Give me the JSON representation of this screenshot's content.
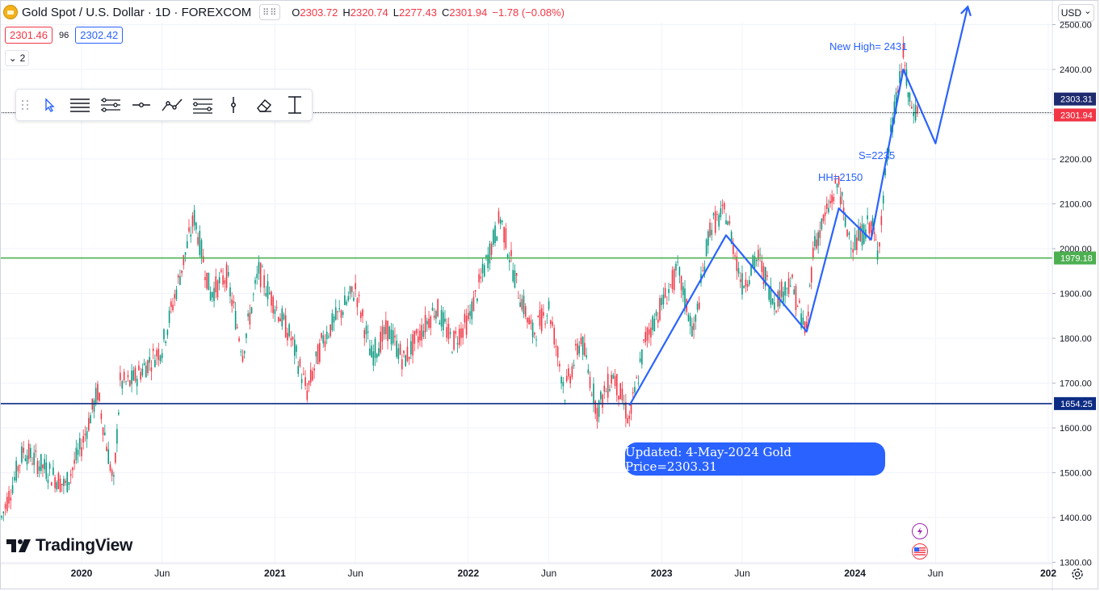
{
  "header": {
    "symbol": "Gold Spot / U.S. Dollar · 1D · FOREXCOM",
    "ohlc": {
      "o_label": "O",
      "o_value": "2303.72",
      "h_label": "H",
      "h_value": "2320.74",
      "l_label": "L",
      "l_value": "2277.43",
      "c_label": "C",
      "c_value": "2301.94",
      "change": "−1.78 (−0.08%)"
    },
    "bid": "2301.46",
    "spread": "96",
    "ask": "2302.42",
    "collapse_count": "2",
    "currency": "USD"
  },
  "toolbar": {
    "tools": [
      "drag-handle",
      "cursor-icon",
      "horizontal-lines-icon",
      "parallel-channel-icon",
      "horizontal-ray-icon",
      "trend-line-icon",
      "fib-levels-icon",
      "vertical-line-icon",
      "eraser-icon",
      "measure-icon"
    ]
  },
  "branding": {
    "logo_text": "TradingView"
  },
  "annotations": {
    "new_high": "New High= 2431",
    "hh": "HH=2150",
    "support": "S=2235",
    "updated": "Updated: 4-May-2024 Gold Price=2303.31"
  },
  "chart_data": {
    "type": "candlestick",
    "title": "Gold Spot / U.S. Dollar",
    "interval": "1D",
    "ylim": [
      1300,
      2550
    ],
    "y_ticks": [
      1300,
      1400,
      1500,
      1600,
      1700,
      1800,
      1900,
      2000,
      2100,
      2200,
      2300,
      2400,
      2500
    ],
    "y_tick_labels": [
      "1300.00",
      "1400.00",
      "1500.00",
      "1600.00",
      "1700.00",
      "1800.00",
      "1900.00",
      "2000.00",
      "2100.00",
      "2200.00",
      "2300.00",
      "2400.00",
      "2500.00"
    ],
    "x_tick_labels": [
      {
        "date": "2020-01",
        "label": "2020",
        "bold": true
      },
      {
        "date": "2020-06",
        "label": "Jun",
        "bold": false
      },
      {
        "date": "2021-01",
        "label": "2021",
        "bold": true
      },
      {
        "date": "2021-06",
        "label": "Jun",
        "bold": false
      },
      {
        "date": "2022-01",
        "label": "2022",
        "bold": true
      },
      {
        "date": "2022-06",
        "label": "Jun",
        "bold": false
      },
      {
        "date": "2023-01",
        "label": "2023",
        "bold": true
      },
      {
        "date": "2023-06",
        "label": "Jun",
        "bold": false
      },
      {
        "date": "2024-01",
        "label": "2024",
        "bold": true
      },
      {
        "date": "2024-06",
        "label": "Jun",
        "bold": false
      },
      {
        "date": "2025-01",
        "label": "202",
        "bold": true
      }
    ],
    "price_path": [
      {
        "date": "2019-09",
        "value": 1400
      },
      {
        "date": "2019-09",
        "value": 1550
      },
      {
        "date": "2019-12",
        "value": 1470
      },
      {
        "date": "2020-01",
        "value": 1560
      },
      {
        "date": "2020-02",
        "value": 1680
      },
      {
        "date": "2020-03",
        "value": 1470
      },
      {
        "date": "2020-03",
        "value": 1700
      },
      {
        "date": "2020-04",
        "value": 1700
      },
      {
        "date": "2020-06",
        "value": 1780
      },
      {
        "date": "2020-08",
        "value": 2070
      },
      {
        "date": "2020-09",
        "value": 1900
      },
      {
        "date": "2020-10",
        "value": 1940
      },
      {
        "date": "2020-11",
        "value": 1770
      },
      {
        "date": "2020-12",
        "value": 1950
      },
      {
        "date": "2021-02",
        "value": 1800
      },
      {
        "date": "2021-03",
        "value": 1680
      },
      {
        "date": "2021-04",
        "value": 1800
      },
      {
        "date": "2021-06",
        "value": 1910
      },
      {
        "date": "2021-07",
        "value": 1760
      },
      {
        "date": "2021-08",
        "value": 1820
      },
      {
        "date": "2021-09",
        "value": 1750
      },
      {
        "date": "2021-11",
        "value": 1870
      },
      {
        "date": "2021-12",
        "value": 1790
      },
      {
        "date": "2022-01",
        "value": 1840
      },
      {
        "date": "2022-03",
        "value": 2070
      },
      {
        "date": "2022-04",
        "value": 1920
      },
      {
        "date": "2022-05",
        "value": 1810
      },
      {
        "date": "2022-06",
        "value": 1870
      },
      {
        "date": "2022-07",
        "value": 1680
      },
      {
        "date": "2022-08",
        "value": 1800
      },
      {
        "date": "2022-09",
        "value": 1640
      },
      {
        "date": "2022-10",
        "value": 1720
      },
      {
        "date": "2022-11",
        "value": 1616
      },
      {
        "date": "2022-12",
        "value": 1800
      },
      {
        "date": "2023-02",
        "value": 1950
      },
      {
        "date": "2023-03",
        "value": 1810
      },
      {
        "date": "2023-04",
        "value": 2050
      },
      {
        "date": "2023-05",
        "value": 2080
      },
      {
        "date": "2023-06",
        "value": 1920
      },
      {
        "date": "2023-07",
        "value": 1980
      },
      {
        "date": "2023-08",
        "value": 1880
      },
      {
        "date": "2023-09",
        "value": 1930
      },
      {
        "date": "2023-10",
        "value": 1810
      },
      {
        "date": "2023-10",
        "value": 2000
      },
      {
        "date": "2023-12",
        "value": 2150
      },
      {
        "date": "2023-12",
        "value": 2050
      },
      {
        "date": "2024-01",
        "value": 2010
      },
      {
        "date": "2024-02",
        "value": 2060
      },
      {
        "date": "2024-02",
        "value": 1990
      },
      {
        "date": "2024-03",
        "value": 2200
      },
      {
        "date": "2024-04",
        "value": 2431
      },
      {
        "date": "2024-04",
        "value": 2320
      },
      {
        "date": "2024-05",
        "value": 2302
      }
    ],
    "horizontal_levels": [
      {
        "value": 2303.31,
        "label": "2303.31",
        "color": "#131722",
        "style": "dashed",
        "badge_color": "#1e2b6e"
      },
      {
        "value": 2301.94,
        "label": "2301.94",
        "color": "#f23645",
        "style": "none",
        "badge_color": "#f23645"
      },
      {
        "value": 1979.18,
        "label": "1979.18",
        "color": "#4caf50",
        "style": "solid",
        "badge_color": "#4caf50"
      },
      {
        "value": 1654.25,
        "label": "1654.25",
        "color": "#0d2c84",
        "style": "solid",
        "badge_color": "#0d2c84"
      }
    ],
    "wave_path": [
      {
        "date": "2022-11",
        "value": 1650
      },
      {
        "date": "2023-05",
        "value": 2030
      },
      {
        "date": "2023-10",
        "value": 1815
      },
      {
        "date": "2023-12",
        "value": 2090
      },
      {
        "date": "2024-02",
        "value": 2020
      },
      {
        "date": "2024-04",
        "value": 2400
      },
      {
        "date": "2024-06",
        "value": 2235
      },
      {
        "date": "2024-08",
        "value": 2540
      }
    ],
    "colors": {
      "up": "#089981",
      "down": "#f23645",
      "wave": "#2962ff"
    },
    "legend": "none",
    "grid": true
  }
}
